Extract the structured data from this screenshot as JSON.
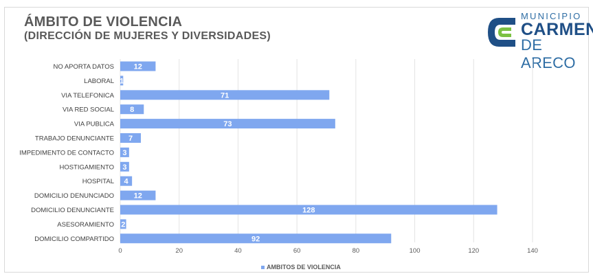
{
  "header": {
    "title": "ÁMBITO DE VIOLENCIA",
    "subtitle": "(DIRECCIÓN DE MUJERES Y DIVERSIDADES)"
  },
  "logo": {
    "line1": "MUNICIPIO",
    "line2": "CARMEN",
    "line3": "DE ARECO",
    "colors": {
      "blue": "#1f4f86",
      "green": "#7bc143"
    }
  },
  "chart_data": {
    "type": "bar",
    "orientation": "horizontal",
    "categories": [
      "NO APORTA DATOS",
      "LABORAL",
      "VIA TELEFONICA",
      "VIA RED SOCIAL",
      "VIA PUBLICA",
      "TRABAJO DENUNCIANTE",
      "IMPEDIMENTO DE CONTACTO",
      "HOSTIGAMIENTO",
      "HOSPITAL",
      "DOMICILIO DENUNCIADO",
      "DOMICILIO DENUNCIANTE",
      "ASESORAMIENTO",
      "DOMICILIO COMPARTIDO"
    ],
    "series": [
      {
        "name": "AMBITOS DE VIOLENCIA",
        "values": [
          12,
          1,
          71,
          8,
          73,
          7,
          3,
          3,
          4,
          12,
          128,
          2,
          92
        ],
        "color": "#7fa7ef"
      }
    ],
    "xlim": [
      0,
      140
    ],
    "xticks": [
      0,
      20,
      40,
      60,
      80,
      100,
      120,
      140
    ],
    "grid": true,
    "legend": "bottom",
    "data_labels": true
  }
}
